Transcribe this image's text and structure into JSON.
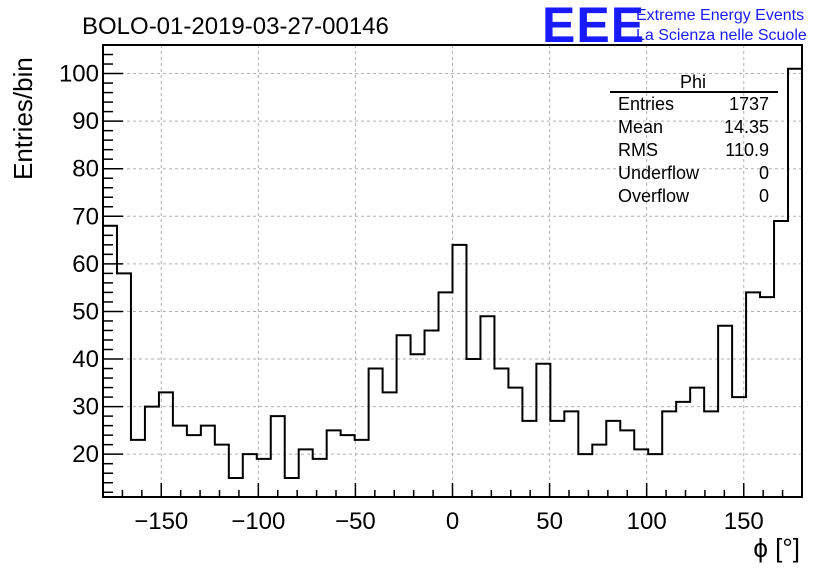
{
  "chart_data": {
    "type": "histogram",
    "title": "BOLO-01-2019-03-27-00146",
    "xlabel": "ϕ [°]",
    "ylabel": "Entries/bin",
    "xlim": [
      -180,
      180
    ],
    "ylim": [
      11,
      106
    ],
    "bin_width": 7.2,
    "grid": true,
    "x_ticks": [
      -150,
      -100,
      -50,
      0,
      50,
      100,
      150
    ],
    "x_tick_labels": [
      "−150",
      "−100",
      "−50",
      "0",
      "50",
      "100",
      "150"
    ],
    "y_ticks": [
      20,
      30,
      40,
      50,
      60,
      70,
      80,
      90,
      100
    ],
    "y_tick_labels": [
      "20",
      "30",
      "40",
      "50",
      "60",
      "70",
      "80",
      "90",
      "100"
    ],
    "values": [
      68,
      58,
      23,
      30,
      33,
      26,
      24,
      26,
      22,
      15,
      20,
      19,
      28,
      15,
      21,
      19,
      25,
      24,
      23,
      38,
      33,
      45,
      41,
      46,
      54,
      64,
      40,
      49,
      38,
      34,
      27,
      39,
      27,
      29,
      20,
      22,
      27,
      25,
      21,
      20,
      29,
      31,
      34,
      29,
      47,
      32,
      54,
      53,
      69,
      101
    ],
    "stats_box": {
      "title": "Phi",
      "rows": [
        {
          "label": "Entries",
          "value": "1737"
        },
        {
          "label": "Mean",
          "value": "14.35"
        },
        {
          "label": "RMS",
          "value": "110.9"
        },
        {
          "label": "Underflow",
          "value": "0"
        },
        {
          "label": "Overflow",
          "value": "0"
        }
      ]
    }
  },
  "logo": {
    "mark": "EEE",
    "line1": "Extreme Energy Events",
    "line2": "La Scienza nelle Scuole"
  },
  "colors": {
    "logo": "#1a1aff",
    "line": "#000000",
    "grid": "#b0b0b0"
  }
}
